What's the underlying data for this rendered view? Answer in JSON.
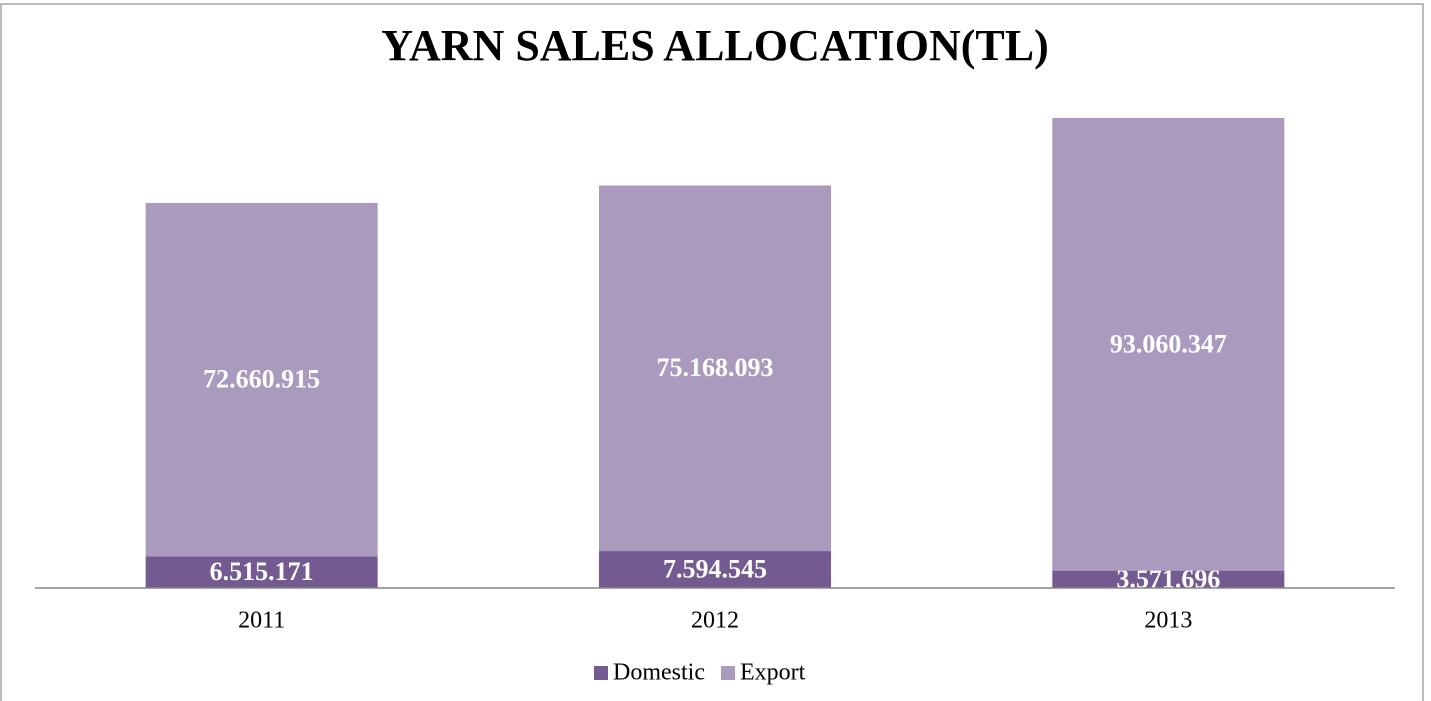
{
  "chart_data": {
    "type": "stacked_bar",
    "title": "YARN SALES ALLOCATION(TL)",
    "categories": [
      "2011",
      "2012",
      "2013"
    ],
    "series": [
      {
        "name": "Domestic",
        "color": "#735a90",
        "values": [
          6515171,
          7594545,
          3571696
        ],
        "value_labels": [
          "6.515.171",
          "7.594.545",
          "3.571.696"
        ]
      },
      {
        "name": "Export",
        "color": "#a99abe",
        "values": [
          72660915,
          75168093,
          93060347
        ],
        "value_labels": [
          "72.660.915",
          "75.168.093",
          "93.060.347"
        ]
      }
    ],
    "legend": "bottom"
  }
}
